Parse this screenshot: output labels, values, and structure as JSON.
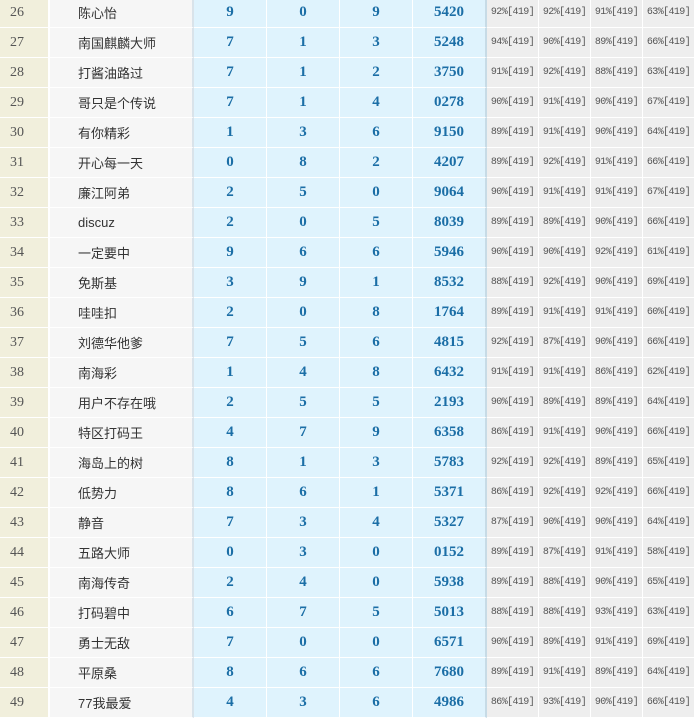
{
  "rows": [
    {
      "rank": "26",
      "name": "陈心怡",
      "digits": [
        "9",
        "0",
        "9"
      ],
      "code": "5420",
      "pcts": [
        "92%[419]",
        "92%[419]",
        "91%[419]",
        "63%[419]"
      ]
    },
    {
      "rank": "27",
      "name": "南国麒麟大师",
      "digits": [
        "7",
        "1",
        "3"
      ],
      "code": "5248",
      "pcts": [
        "94%[419]",
        "90%[419]",
        "89%[419]",
        "66%[419]"
      ]
    },
    {
      "rank": "28",
      "name": "打酱油路过",
      "digits": [
        "7",
        "1",
        "2"
      ],
      "code": "3750",
      "pcts": [
        "91%[419]",
        "92%[419]",
        "88%[419]",
        "63%[419]"
      ]
    },
    {
      "rank": "29",
      "name": "哥只是个传说",
      "digits": [
        "7",
        "1",
        "4"
      ],
      "code": "0278",
      "pcts": [
        "90%[419]",
        "91%[419]",
        "90%[419]",
        "67%[419]"
      ]
    },
    {
      "rank": "30",
      "name": "有你精彩",
      "digits": [
        "1",
        "3",
        "6"
      ],
      "code": "9150",
      "pcts": [
        "89%[419]",
        "91%[419]",
        "90%[419]",
        "64%[419]"
      ]
    },
    {
      "rank": "31",
      "name": "开心每一天",
      "digits": [
        "0",
        "8",
        "2"
      ],
      "code": "4207",
      "pcts": [
        "89%[419]",
        "92%[419]",
        "91%[419]",
        "66%[419]"
      ]
    },
    {
      "rank": "32",
      "name": "廉江阿弟",
      "digits": [
        "2",
        "5",
        "0"
      ],
      "code": "9064",
      "pcts": [
        "90%[419]",
        "91%[419]",
        "91%[419]",
        "67%[419]"
      ]
    },
    {
      "rank": "33",
      "name": "discuz",
      "digits": [
        "2",
        "0",
        "5"
      ],
      "code": "8039",
      "pcts": [
        "89%[419]",
        "89%[419]",
        "90%[419]",
        "66%[419]"
      ]
    },
    {
      "rank": "34",
      "name": "一定要中",
      "digits": [
        "9",
        "6",
        "6"
      ],
      "code": "5946",
      "pcts": [
        "90%[419]",
        "90%[419]",
        "92%[419]",
        "61%[419]"
      ]
    },
    {
      "rank": "35",
      "name": "免斯基",
      "digits": [
        "3",
        "9",
        "1"
      ],
      "code": "8532",
      "pcts": [
        "88%[419]",
        "92%[419]",
        "90%[419]",
        "69%[419]"
      ]
    },
    {
      "rank": "36",
      "name": "哇哇扣",
      "digits": [
        "2",
        "0",
        "8"
      ],
      "code": "1764",
      "pcts": [
        "89%[419]",
        "91%[419]",
        "91%[419]",
        "60%[419]"
      ]
    },
    {
      "rank": "37",
      "name": "刘德华他爹",
      "digits": [
        "7",
        "5",
        "6"
      ],
      "code": "4815",
      "pcts": [
        "92%[419]",
        "87%[419]",
        "90%[419]",
        "66%[419]"
      ]
    },
    {
      "rank": "38",
      "name": "南海彩",
      "digits": [
        "1",
        "4",
        "8"
      ],
      "code": "6432",
      "pcts": [
        "91%[419]",
        "91%[419]",
        "86%[419]",
        "62%[419]"
      ]
    },
    {
      "rank": "39",
      "name": "用户不存在哦",
      "digits": [
        "2",
        "5",
        "5"
      ],
      "code": "2193",
      "pcts": [
        "90%[419]",
        "89%[419]",
        "89%[419]",
        "64%[419]"
      ]
    },
    {
      "rank": "40",
      "name": "特区打码王",
      "digits": [
        "4",
        "7",
        "9"
      ],
      "code": "6358",
      "pcts": [
        "86%[419]",
        "91%[419]",
        "90%[419]",
        "66%[419]"
      ]
    },
    {
      "rank": "41",
      "name": "海岛上的树",
      "digits": [
        "8",
        "1",
        "3"
      ],
      "code": "5783",
      "pcts": [
        "92%[419]",
        "92%[419]",
        "89%[419]",
        "65%[419]"
      ]
    },
    {
      "rank": "42",
      "name": "低势力",
      "digits": [
        "8",
        "6",
        "1"
      ],
      "code": "5371",
      "pcts": [
        "86%[419]",
        "92%[419]",
        "92%[419]",
        "66%[419]"
      ]
    },
    {
      "rank": "43",
      "name": "静音",
      "digits": [
        "7",
        "3",
        "4"
      ],
      "code": "5327",
      "pcts": [
        "87%[419]",
        "90%[419]",
        "90%[419]",
        "64%[419]"
      ]
    },
    {
      "rank": "44",
      "name": "五路大师",
      "digits": [
        "0",
        "3",
        "0"
      ],
      "code": "0152",
      "pcts": [
        "89%[419]",
        "87%[419]",
        "91%[419]",
        "58%[419]"
      ]
    },
    {
      "rank": "45",
      "name": "南海传奇",
      "digits": [
        "2",
        "4",
        "0"
      ],
      "code": "5938",
      "pcts": [
        "89%[419]",
        "88%[419]",
        "90%[419]",
        "65%[419]"
      ]
    },
    {
      "rank": "46",
      "name": "打码碧中",
      "digits": [
        "6",
        "7",
        "5"
      ],
      "code": "5013",
      "pcts": [
        "88%[419]",
        "88%[419]",
        "93%[419]",
        "63%[419]"
      ]
    },
    {
      "rank": "47",
      "name": "勇士无敌",
      "digits": [
        "7",
        "0",
        "0"
      ],
      "code": "6571",
      "pcts": [
        "90%[419]",
        "89%[419]",
        "91%[419]",
        "69%[419]"
      ]
    },
    {
      "rank": "48",
      "name": "平原桑",
      "digits": [
        "8",
        "6",
        "6"
      ],
      "code": "7680",
      "pcts": [
        "89%[419]",
        "91%[419]",
        "89%[419]",
        "64%[419]"
      ]
    },
    {
      "rank": "49",
      "name": "77我最爱",
      "digits": [
        "4",
        "3",
        "6"
      ],
      "code": "4986",
      "pcts": [
        "86%[419]",
        "93%[419]",
        "90%[419]",
        "66%[419]"
      ]
    }
  ]
}
